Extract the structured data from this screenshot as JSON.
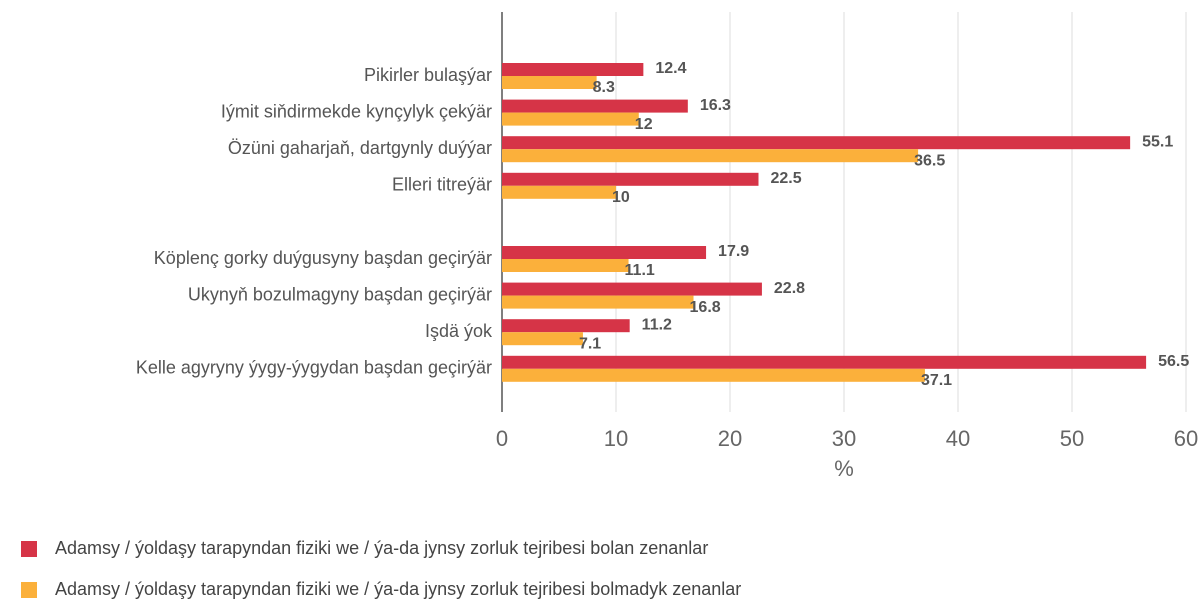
{
  "chart_data": {
    "type": "hbar",
    "categories": [
      "Pikirler bulaşýar",
      "Iýmit siňdirmekde kynçylyk çekýär",
      "Özüni gaharjaň, dartgynly duýýar",
      "Elleri titreýär",
      null,
      "Köplenç gorky duýgusyny başdan geçirýär",
      "Ukynyň bozulmagyny başdan geçirýär",
      "Işdä ýok",
      "Kelle agyryny ýygy-ýygydan başdan geçirýär"
    ],
    "series": [
      {
        "name": "Adamsy / ýoldaşy tarapyndan fiziki we / ýa-da jynsy zorluk tejribesi bolan zenanlar",
        "color": "#d63447",
        "values": [
          12.4,
          16.3,
          55.1,
          22.5,
          null,
          17.9,
          22.8,
          11.2,
          56.5
        ]
      },
      {
        "name": "Adamsy / ýoldaşy tarapyndan fiziki we / ýa-da jynsy zorluk tejribesi bolmadyk zenanlar",
        "color": "#fbb03b",
        "values": [
          8.3,
          12,
          36.5,
          10,
          null,
          11.1,
          16.8,
          7.1,
          37.1
        ]
      }
    ],
    "xlabel": "%",
    "xlim": [
      0,
      60
    ],
    "xticks": [
      0,
      10,
      20,
      30,
      40,
      50,
      60
    ]
  }
}
